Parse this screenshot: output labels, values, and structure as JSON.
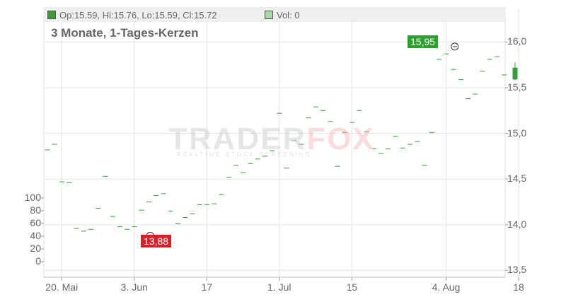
{
  "legend": {
    "ohlc": "Op:15.59, Hi:15.76, Lo:15.59, Cl:15.72",
    "volume": "Vol: 0",
    "price_color": "#3c9b3c",
    "volume_color": "#a8d8a8"
  },
  "subtitle": "3 Monate, 1-Tages-Kerzen",
  "watermark": {
    "main_a": "TRADER",
    "main_b": "FOX",
    "sub": "REALTIME STOCK SCREENING"
  },
  "markers": {
    "high": "15,95",
    "low": "13,88",
    "high_color": "#2e9e2e",
    "low_color": "#d2232a"
  },
  "chart_data": {
    "type": "candlestick",
    "y_ticks": [
      "16,0",
      "15,5",
      "15,0",
      "14,5",
      "14,0",
      "13,5"
    ],
    "y_tick_values": [
      16.0,
      15.5,
      15.0,
      14.5,
      14.0,
      13.5
    ],
    "ylim": [
      13.48,
      16.22
    ],
    "volume_ticks": [
      "100",
      "80",
      "60",
      "40",
      "20",
      "0"
    ],
    "volume_tick_values": [
      100,
      80,
      60,
      40,
      20,
      0
    ],
    "x_ticks": [
      "20. Mai",
      "3. Jun",
      "17",
      "1. Jul",
      "15",
      "4. Aug",
      "18"
    ],
    "x_tick_index": [
      1,
      11,
      21,
      31,
      41,
      54,
      64
    ],
    "grid": true,
    "closes": [
      14.82,
      14.88,
      14.47,
      14.46,
      13.96,
      13.93,
      13.95,
      14.18,
      14.53,
      14.09,
      13.98,
      13.95,
      13.98,
      14.16,
      14.25,
      14.32,
      14.34,
      14.15,
      14.01,
      14.08,
      14.12,
      14.22,
      14.22,
      14.23,
      14.33,
      14.52,
      14.65,
      14.57,
      14.67,
      14.72,
      14.75,
      14.81,
      15.22,
      14.62,
      14.92,
      14.88,
      15.17,
      15.29,
      15.25,
      15.13,
      14.64,
      15.01,
      15.12,
      15.25,
      15.02,
      14.83,
      14.78,
      14.83,
      14.97,
      14.84,
      14.88,
      14.91,
      14.65,
      15.01,
      15.81,
      15.87,
      15.7,
      15.59,
      15.38,
      15.43,
      15.68,
      15.81,
      15.84,
      15.64,
      15.72
    ],
    "last_candle": {
      "open": 15.59,
      "high": 15.76,
      "low": 15.59,
      "close": 15.72
    },
    "high_marker_index": 55,
    "high_marker_value": 15.95,
    "low_marker_index": 13,
    "low_marker_value": 13.88
  }
}
